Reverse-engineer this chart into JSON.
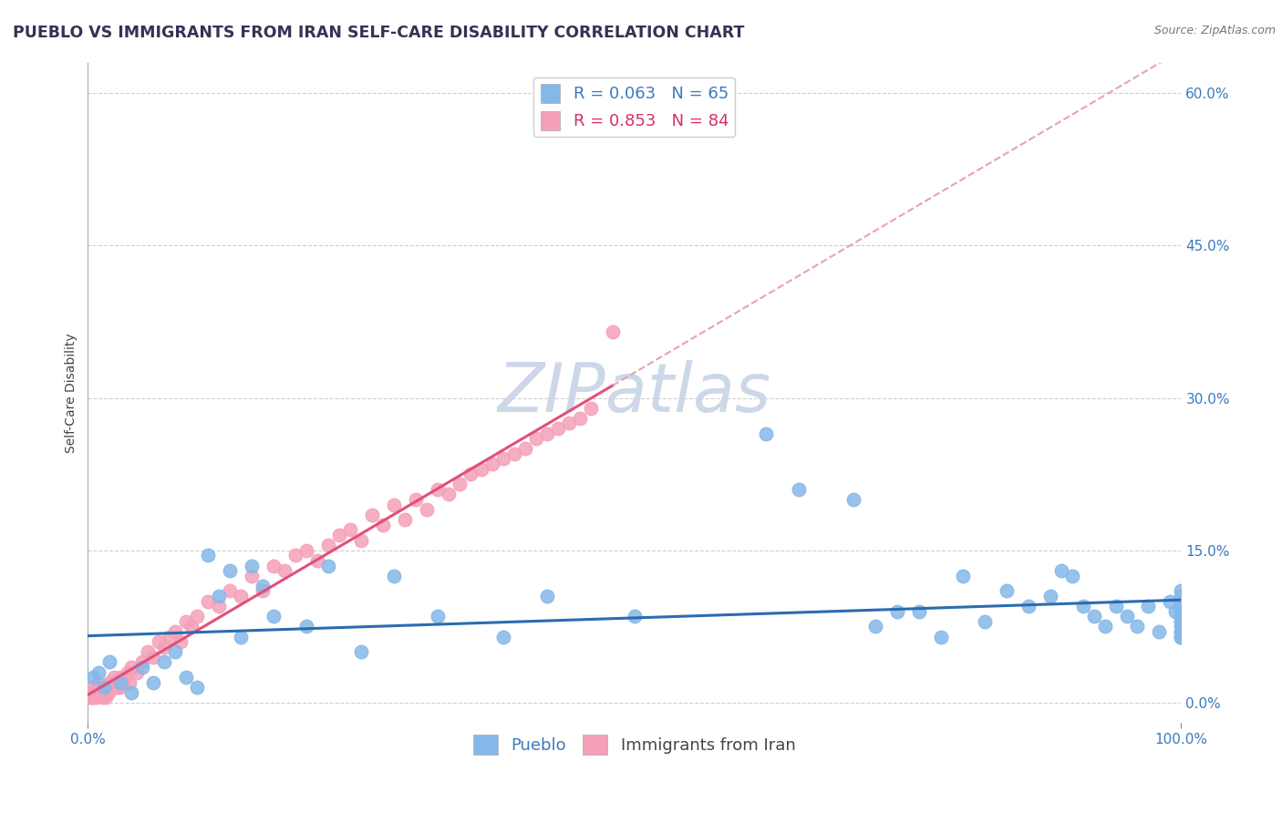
{
  "title": "PUEBLO VS IMMIGRANTS FROM IRAN SELF-CARE DISABILITY CORRELATION CHART",
  "source": "Source: ZipAtlas.com",
  "ylabel": "Self-Care Disability",
  "xlim": [
    0.0,
    100.0
  ],
  "ylim": [
    -2.0,
    63.0
  ],
  "yticks": [
    0.0,
    15.0,
    30.0,
    45.0,
    60.0
  ],
  "xticks": [
    0.0,
    100.0
  ],
  "background_color": "#ffffff",
  "grid_color": "#d0d0d0",
  "watermark": "ZIPatlas",
  "pueblo_color": "#85b8e8",
  "pueblo_line_color": "#2b6cb0",
  "iran_color": "#f5a0b8",
  "iran_line_color": "#e0507a",
  "iran_line_dash_color": "#e8a0b8",
  "pueblo_R": 0.063,
  "pueblo_N": 65,
  "iran_R": 0.853,
  "iran_N": 84,
  "pueblo_x": [
    0.5,
    1.0,
    1.5,
    2.0,
    3.0,
    4.0,
    5.0,
    6.0,
    7.0,
    8.0,
    9.0,
    10.0,
    11.0,
    12.0,
    13.0,
    14.0,
    15.0,
    16.0,
    17.0,
    20.0,
    22.0,
    25.0,
    28.0,
    32.0,
    38.0,
    42.0,
    50.0,
    62.0,
    65.0,
    70.0,
    72.0,
    74.0,
    76.0,
    78.0,
    80.0,
    82.0,
    84.0,
    86.0,
    88.0,
    89.0,
    90.0,
    91.0,
    92.0,
    93.0,
    94.0,
    95.0,
    96.0,
    97.0,
    98.0,
    99.0,
    99.5,
    100.0,
    100.0,
    100.0,
    100.0,
    100.0,
    100.0,
    100.0,
    100.0,
    100.0,
    100.0,
    100.0,
    100.0,
    100.0,
    100.0
  ],
  "pueblo_y": [
    2.5,
    3.0,
    1.5,
    4.0,
    2.0,
    1.0,
    3.5,
    2.0,
    4.0,
    5.0,
    2.5,
    1.5,
    14.5,
    10.5,
    13.0,
    6.5,
    13.5,
    11.5,
    8.5,
    7.5,
    13.5,
    5.0,
    12.5,
    8.5,
    6.5,
    10.5,
    8.5,
    26.5,
    21.0,
    20.0,
    7.5,
    9.0,
    9.0,
    6.5,
    12.5,
    8.0,
    11.0,
    9.5,
    10.5,
    13.0,
    12.5,
    9.5,
    8.5,
    7.5,
    9.5,
    8.5,
    7.5,
    9.5,
    7.0,
    10.0,
    9.0,
    8.0,
    7.0,
    9.5,
    8.0,
    6.5,
    7.5,
    9.0,
    11.0,
    10.5,
    10.0,
    8.5,
    7.0,
    6.5,
    9.5
  ],
  "iran_x": [
    0.1,
    0.2,
    0.3,
    0.4,
    0.5,
    0.6,
    0.7,
    0.8,
    0.9,
    1.0,
    1.1,
    1.2,
    1.3,
    1.4,
    1.5,
    1.6,
    1.7,
    1.8,
    1.9,
    2.0,
    2.1,
    2.2,
    2.3,
    2.4,
    2.5,
    2.6,
    2.7,
    2.8,
    2.9,
    3.0,
    3.2,
    3.4,
    3.6,
    3.8,
    4.0,
    4.5,
    5.0,
    5.5,
    6.0,
    6.5,
    7.0,
    7.5,
    8.0,
    8.5,
    9.0,
    9.5,
    10.0,
    11.0,
    12.0,
    13.0,
    14.0,
    15.0,
    16.0,
    17.0,
    18.0,
    19.0,
    20.0,
    21.0,
    22.0,
    23.0,
    24.0,
    25.0,
    26.0,
    27.0,
    28.0,
    29.0,
    30.0,
    31.0,
    32.0,
    33.0,
    34.0,
    35.0,
    36.0,
    37.0,
    38.0,
    39.0,
    40.0,
    41.0,
    42.0,
    43.0,
    44.0,
    45.0,
    46.0,
    48.0
  ],
  "iran_y": [
    0.5,
    1.0,
    0.5,
    1.5,
    0.5,
    1.0,
    0.5,
    1.0,
    1.5,
    2.0,
    1.0,
    1.5,
    0.5,
    1.0,
    1.5,
    0.5,
    1.0,
    1.5,
    1.0,
    2.0,
    1.5,
    2.0,
    1.5,
    2.5,
    1.5,
    2.0,
    1.5,
    2.0,
    1.5,
    2.5,
    2.0,
    2.5,
    3.0,
    2.0,
    3.5,
    3.0,
    4.0,
    5.0,
    4.5,
    6.0,
    5.5,
    6.5,
    7.0,
    6.0,
    8.0,
    7.5,
    8.5,
    10.0,
    9.5,
    11.0,
    10.5,
    12.5,
    11.0,
    13.5,
    13.0,
    14.5,
    15.0,
    14.0,
    15.5,
    16.5,
    17.0,
    16.0,
    18.5,
    17.5,
    19.5,
    18.0,
    20.0,
    19.0,
    21.0,
    20.5,
    21.5,
    22.5,
    23.0,
    23.5,
    24.0,
    24.5,
    25.0,
    26.0,
    26.5,
    27.0,
    27.5,
    28.0,
    29.0,
    36.5
  ],
  "title_fontsize": 12.5,
  "axis_label_fontsize": 10,
  "tick_fontsize": 11,
  "legend_fontsize": 13,
  "watermark_color": "#ccd8e8",
  "watermark_fontsize": 54
}
